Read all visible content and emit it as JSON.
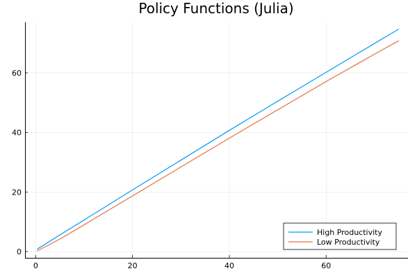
{
  "chart_data": {
    "type": "line",
    "title": "Policy Functions (Julia)",
    "xlabel": "",
    "ylabel": "",
    "xlim": [
      -2.2,
      76.9
    ],
    "ylim": [
      -2.1,
      77.0
    ],
    "xticks": [
      0,
      20,
      40,
      60
    ],
    "yticks": [
      0,
      20,
      40,
      60
    ],
    "grid": true,
    "legend_position": "bottom-right",
    "series": [
      {
        "name": "High Productivity",
        "color": "#009AFA",
        "x": [
          0.3,
          5,
          10,
          20,
          30,
          40,
          50,
          60,
          70,
          75
        ],
        "y": [
          0.8,
          5.6,
          10.6,
          20.7,
          30.7,
          40.7,
          50.5,
          60.2,
          69.9,
          74.7
        ]
      },
      {
        "name": "Low Productivity",
        "color": "#E26F46",
        "x": [
          0.3,
          5,
          10,
          20,
          30,
          40,
          50,
          60,
          70,
          75
        ],
        "y": [
          0.2,
          4.2,
          9.0,
          18.7,
          28.4,
          38.1,
          47.6,
          57.1,
          66.3,
          70.8
        ]
      }
    ]
  }
}
